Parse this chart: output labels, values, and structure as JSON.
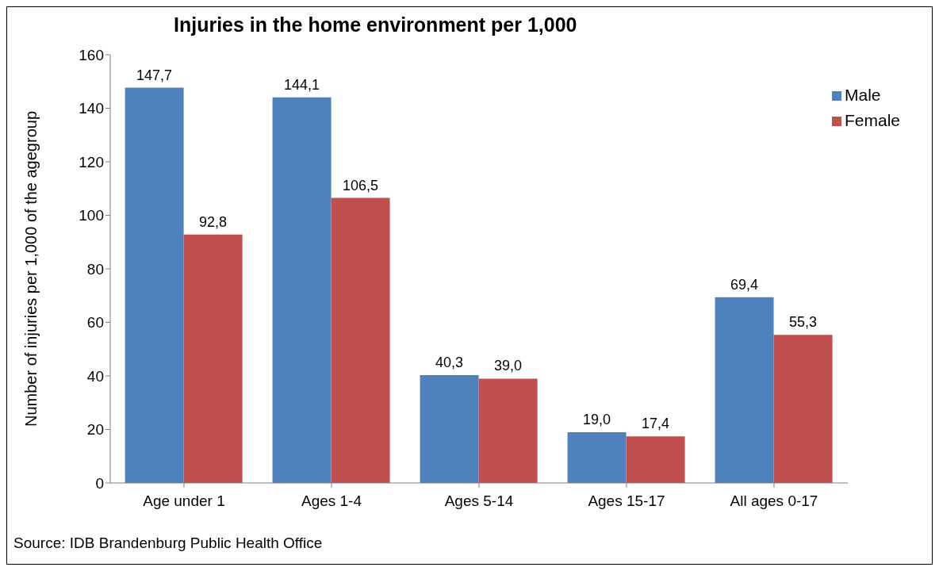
{
  "chart_data": {
    "type": "bar",
    "title": "Injuries in the home environment per 1,000",
    "ylabel": "Number of injuries per 1,000 of the agegroup",
    "categories": [
      "Age under 1",
      "Ages 1-4",
      "Ages 5-14",
      "Ages 15-17",
      "All ages 0-17"
    ],
    "series": [
      {
        "name": "Male",
        "color": "#4f81bd",
        "values": [
          147.7,
          144.1,
          40.3,
          19.0,
          69.4
        ],
        "value_labels": [
          "147,7",
          "144,1",
          "40,3",
          "19,0",
          "69,4"
        ]
      },
      {
        "name": "Female",
        "color": "#c0504d",
        "values": [
          92.8,
          106.5,
          39.0,
          17.4,
          55.3
        ],
        "value_labels": [
          "92,8",
          "106,5",
          "39,0",
          "17,4",
          "55,3"
        ]
      }
    ],
    "ylim": [
      0,
      160
    ],
    "yticks": [
      0,
      20,
      40,
      60,
      80,
      100,
      120,
      140,
      160
    ],
    "grid": false,
    "legend": "top right",
    "annotations": [
      "Source: IDB Brandenburg Public Health Office"
    ]
  }
}
